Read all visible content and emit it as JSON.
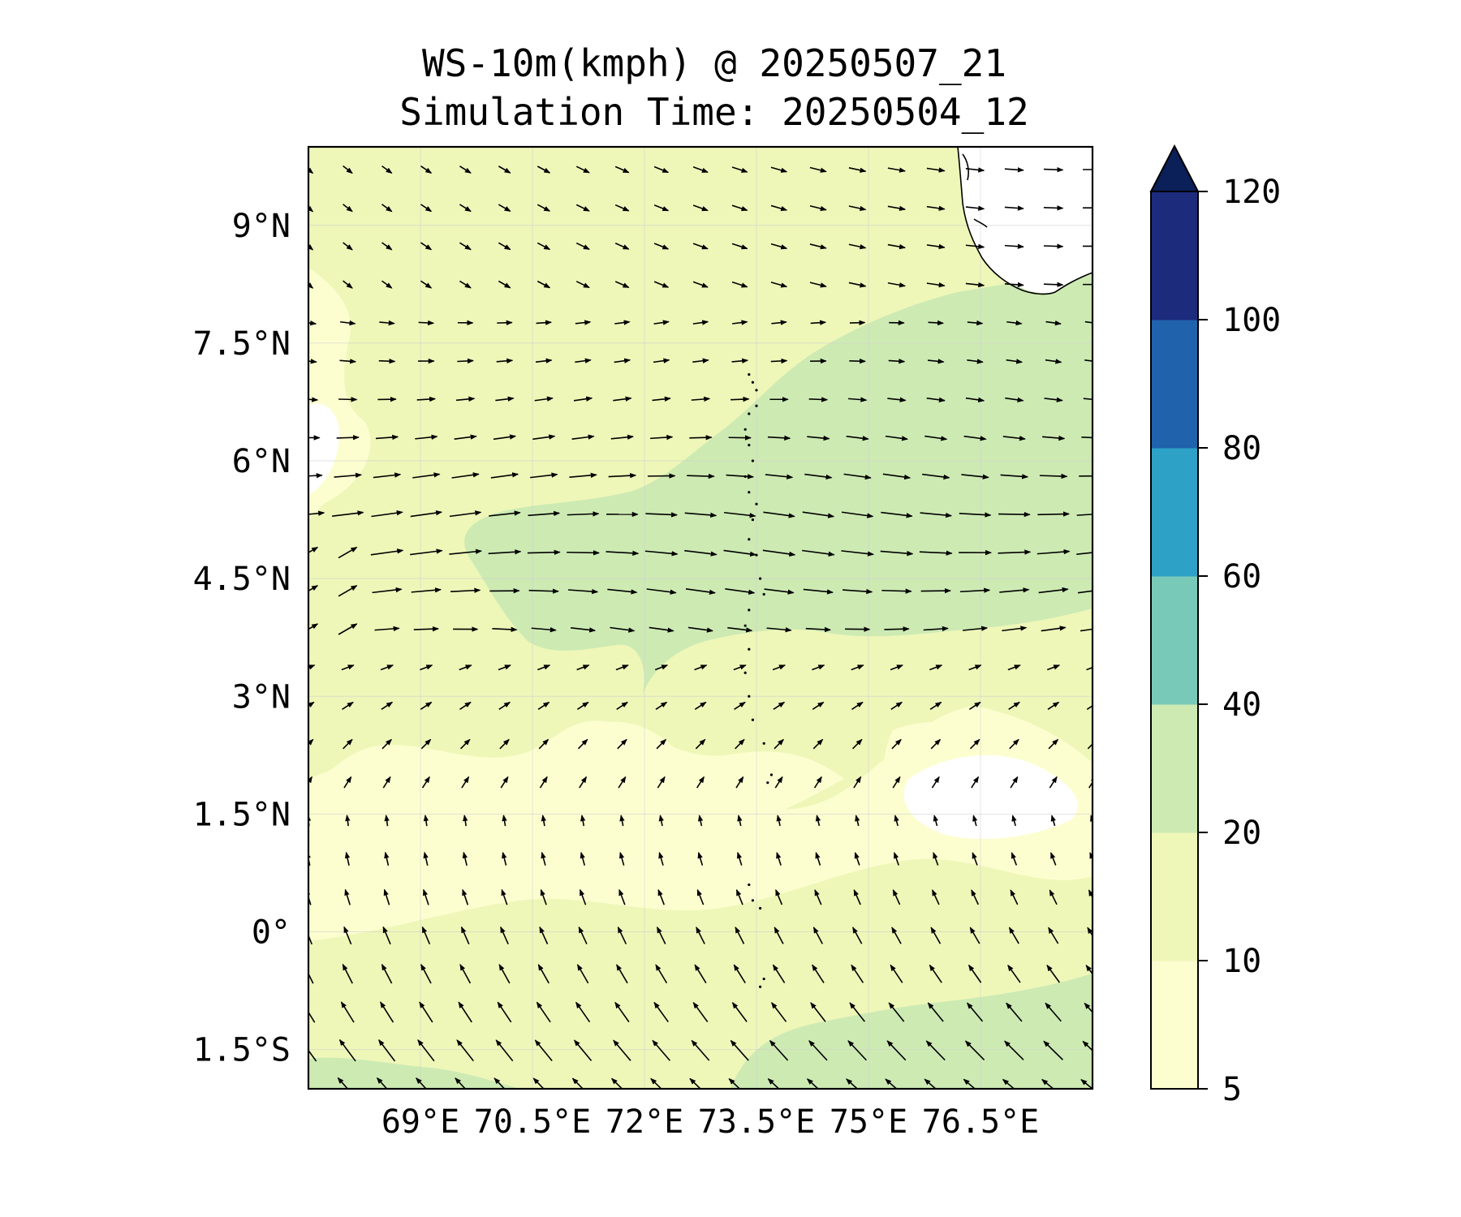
{
  "title": {
    "line1": "WS-10m(kmph) @ 20250507_21",
    "line2": "Simulation Time: 20250504_12"
  },
  "map": {
    "lon_range": [
      67.5,
      78.0
    ],
    "lat_range": [
      -2.0,
      10.0
    ],
    "lat_ticks": [
      {
        "value": 9.0,
        "label": "9°N"
      },
      {
        "value": 7.5,
        "label": "7.5°N"
      },
      {
        "value": 6.0,
        "label": "6°N"
      },
      {
        "value": 4.5,
        "label": "4.5°N"
      },
      {
        "value": 3.0,
        "label": "3°N"
      },
      {
        "value": 1.5,
        "label": "1.5°N"
      },
      {
        "value": 0.0,
        "label": "0°"
      },
      {
        "value": -1.5,
        "label": "1.5°S"
      }
    ],
    "lon_ticks": [
      {
        "value": 69.0,
        "label": "69°E"
      },
      {
        "value": 70.5,
        "label": "70.5°E"
      },
      {
        "value": 72.0,
        "label": "72°E"
      },
      {
        "value": 73.5,
        "label": "73.5°E"
      },
      {
        "value": 75.0,
        "label": "75°E"
      },
      {
        "value": 76.5,
        "label": "76.5°E"
      }
    ],
    "gridlines": true,
    "coastline": "Southern India / Sri Lanka coast at top-right; Maldives atolls near 73.0–73.5°E",
    "vector_field": "10-m wind vectors: westerly in the north, southeasterly in the south"
  },
  "colorbar": {
    "levels": [
      5,
      10,
      20,
      40,
      60,
      80,
      100,
      120
    ],
    "labels": [
      "5",
      "10",
      "20",
      "40",
      "60",
      "80",
      "100",
      "120"
    ],
    "colors": [
      "#fdfed0",
      "#eef7b8",
      "#cdeab3",
      "#79c9b9",
      "#2ea1c7",
      "#2062ac",
      "#1d2b7d"
    ],
    "extend_color": "#0b1f58",
    "extend": "max"
  },
  "field_colors": {
    "white": "#ffffff",
    "band_5_10": "#fdfed0",
    "band_10_20": "#eef7b8",
    "band_20_40": "#cdeab3"
  }
}
